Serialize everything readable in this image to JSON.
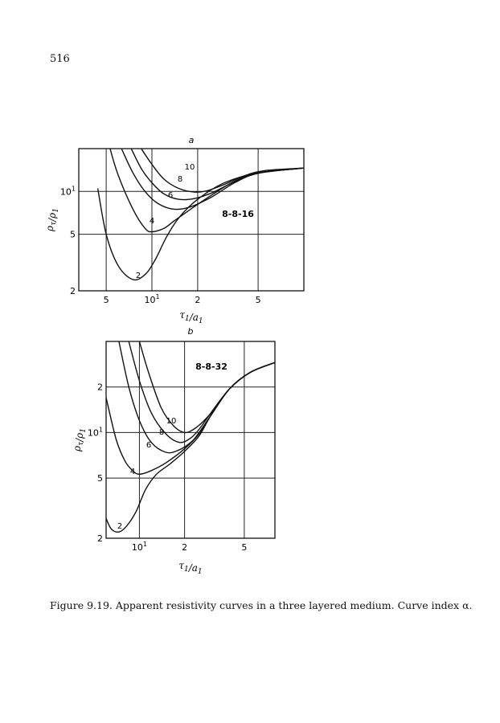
{
  "page_number": "516",
  "caption": "Figure 9.19. Apparent resistivity curves in a three layered medium. Curve index α.",
  "chart_data": [
    {
      "type": "line",
      "panel": "a",
      "model": "8-8-16",
      "xlabel": "τ1/a1",
      "ylabel": "ρτ/ρ1",
      "x_scale": "log",
      "y_scale": "log",
      "xlim": [
        3.3,
        100
      ],
      "ylim": [
        2,
        20
      ],
      "x_ticks": [
        {
          "value": 5,
          "label": "5",
          "exp": ""
        },
        {
          "value": 10,
          "label": "10",
          "exp": "1"
        },
        {
          "value": 20,
          "label": "2",
          "exp": ""
        },
        {
          "value": 50,
          "label": "5",
          "exp": ""
        }
      ],
      "y_ticks": [
        {
          "value": 2,
          "label": "2",
          "exp": ""
        },
        {
          "value": 5,
          "label": "5",
          "exp": ""
        },
        {
          "value": 10,
          "label": "10",
          "exp": "1"
        }
      ],
      "grid": true,
      "series": [
        {
          "name": "2",
          "x": [
            4.4,
            5.0,
            6.0,
            7.5,
            9.0,
            10.5,
            12.5,
            15.0,
            20.0,
            30.0,
            50.0,
            100.0
          ],
          "y": [
            10.5,
            5.0,
            3.0,
            2.4,
            2.6,
            3.3,
            4.8,
            6.5,
            8.8,
            11.5,
            13.5,
            14.6
          ]
        },
        {
          "name": "4",
          "x": [
            5.3,
            6.0,
            7.5,
            9.0,
            10.0,
            12.0,
            14.0,
            18.0,
            25.0,
            35.0,
            50.0,
            100.0
          ],
          "y": [
            20.0,
            13.0,
            7.5,
            5.5,
            5.2,
            5.5,
            6.2,
            7.5,
            9.5,
            11.8,
            13.5,
            14.6
          ]
        },
        {
          "name": "6",
          "x": [
            6.3,
            7.5,
            9.0,
            11.0,
            14.0,
            18.0,
            25.0,
            35.0,
            50.0,
            100.0
          ],
          "y": [
            20.0,
            13.5,
            10.0,
            8.2,
            7.5,
            7.8,
            9.2,
            11.5,
            13.4,
            14.6
          ]
        },
        {
          "name": "8",
          "x": [
            7.3,
            8.5,
            10.0,
            12.0,
            15.0,
            19.0,
            25.0,
            35.0,
            50.0,
            100.0
          ],
          "y": [
            20.0,
            14.5,
            11.5,
            9.6,
            8.8,
            8.9,
            9.8,
            11.7,
            13.5,
            14.6
          ]
        },
        {
          "name": "10",
          "x": [
            8.5,
            10.0,
            12.0,
            15.0,
            19.0,
            23.0,
            30.0,
            40.0,
            55.0,
            100.0
          ],
          "y": [
            20.0,
            15.5,
            12.2,
            10.5,
            9.9,
            10.1,
            11.2,
            12.8,
            14.0,
            14.6
          ]
        }
      ]
    },
    {
      "type": "line",
      "panel": "b",
      "model": "8-8-32",
      "xlabel": "τ1/a1",
      "ylabel": "ρτ/ρ1",
      "x_scale": "log",
      "y_scale": "log",
      "xlim": [
        6,
        80
      ],
      "ylim": [
        2,
        40
      ],
      "x_ticks": [
        {
          "value": 10,
          "label": "10",
          "exp": "1"
        },
        {
          "value": 20,
          "label": "2",
          "exp": ""
        },
        {
          "value": 50,
          "label": "5",
          "exp": ""
        }
      ],
      "y_ticks": [
        {
          "value": 2,
          "label": "2",
          "exp": ""
        },
        {
          "value": 5,
          "label": "5",
          "exp": ""
        },
        {
          "value": 10,
          "label": "10",
          "exp": "1"
        },
        {
          "value": 20,
          "label": "2",
          "exp": ""
        }
      ],
      "grid": true,
      "series": [
        {
          "name": "2",
          "x": [
            6.0,
            6.5,
            7.3,
            8.2,
            9.5,
            11.0,
            13.0,
            16.0,
            20.0,
            25.0,
            30.0,
            40.0,
            55.0,
            80.0
          ],
          "y": [
            2.7,
            2.3,
            2.2,
            2.4,
            3.0,
            4.2,
            5.3,
            6.2,
            7.5,
            9.5,
            13.0,
            19.5,
            25.0,
            29.0
          ]
        },
        {
          "name": "4",
          "x": [
            6.0,
            7.0,
            8.0,
            9.0,
            10.0,
            12.0,
            15.0,
            20.0,
            25.0,
            30.0,
            40.0,
            55.0,
            80.0
          ],
          "y": [
            17.0,
            9.0,
            6.5,
            5.6,
            5.3,
            5.6,
            6.3,
            7.8,
            9.8,
            13.0,
            19.5,
            25.0,
            29.0
          ]
        },
        {
          "name": "6",
          "x": [
            7.3,
            8.5,
            10.0,
            12.0,
            15.0,
            18.0,
            22.0,
            25.0,
            30.0,
            40.0,
            55.0,
            80.0
          ],
          "y": [
            40.0,
            20.0,
            12.0,
            8.6,
            7.4,
            7.6,
            8.6,
            10.0,
            13.0,
            19.5,
            25.0,
            29.0
          ]
        },
        {
          "name": "8",
          "x": [
            8.5,
            10.0,
            12.0,
            15.0,
            18.5,
            22.0,
            25.0,
            30.0,
            40.0,
            55.0,
            80.0
          ],
          "y": [
            40.0,
            22.0,
            13.5,
            9.8,
            8.6,
            9.2,
            10.5,
            13.5,
            19.5,
            25.0,
            29.0
          ]
        },
        {
          "name": "10",
          "x": [
            10.0,
            11.5,
            14.0,
            17.0,
            20.0,
            23.0,
            27.0,
            32.0,
            40.0,
            55.0,
            80.0
          ],
          "y": [
            40.0,
            25.0,
            14.5,
            11.0,
            10.0,
            10.5,
            12.0,
            14.5,
            19.5,
            25.0,
            29.0
          ]
        }
      ]
    }
  ]
}
